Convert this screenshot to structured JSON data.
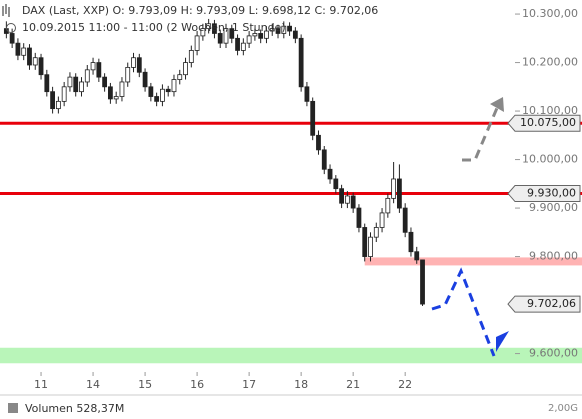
{
  "chart_data": {
    "type": "candlestick",
    "title": "DAX (Last, XXP)  O: 9.793,09  H: 9.793,09  L: 9.698,12  C: 9.702,06",
    "subtitle": "10.09.2015 11:00 - 11:00 (2 Wochen, 1 Stunde)",
    "volume_label": "Volumen  528,37M",
    "volume_tick": "2,00G",
    "ylim": [
      9562,
      10329
    ],
    "yticks": [
      {
        "value": 10300,
        "label": "10.300,00"
      },
      {
        "value": 10200,
        "label": "10.200,00"
      },
      {
        "value": 10100,
        "label": "10.100,00"
      },
      {
        "value": 10000,
        "label": "10.000,00"
      },
      {
        "value": 9900,
        "label": "9.900,00"
      },
      {
        "value": 9800,
        "label": "9.800,00"
      },
      {
        "value": 9600,
        "label": "9.600,00"
      }
    ],
    "xlim": [
      -1.1,
      88
    ],
    "xticks": [
      {
        "value": 6,
        "label": "11"
      },
      {
        "value": 15,
        "label": "14"
      },
      {
        "value": 24,
        "label": "15"
      },
      {
        "value": 33,
        "label": "16"
      },
      {
        "value": 42,
        "label": "17"
      },
      {
        "value": 51,
        "label": "18"
      },
      {
        "value": 60,
        "label": "21"
      },
      {
        "value": 69,
        "label": "22"
      }
    ],
    "levels": [
      {
        "value": 10075,
        "label": "10.075,00",
        "color": "#e8000b"
      },
      {
        "value": 9930,
        "label": "9.930,00",
        "color": "#e8000b"
      }
    ],
    "last_price": {
      "value": 9702.06,
      "label": "9.702,06"
    },
    "resistance_zone": {
      "value": 9790,
      "start": 62,
      "color": "#ffb3b3"
    },
    "support_zone": {
      "from": 9580,
      "to": 9612,
      "color": "#b9f5b9"
    },
    "candles": [
      [
        10270,
        10285,
        10250,
        10260
      ],
      [
        10260,
        10270,
        10230,
        10240
      ],
      [
        10240,
        10250,
        10205,
        10215
      ],
      [
        10215,
        10240,
        10205,
        10230
      ],
      [
        10230,
        10238,
        10185,
        10195
      ],
      [
        10195,
        10220,
        10185,
        10210
      ],
      [
        10210,
        10218,
        10165,
        10175
      ],
      [
        10175,
        10185,
        10130,
        10140
      ],
      [
        10140,
        10150,
        10095,
        10105
      ],
      [
        10105,
        10130,
        10095,
        10120
      ],
      [
        10120,
        10160,
        10110,
        10150
      ],
      [
        10150,
        10180,
        10140,
        10170
      ],
      [
        10170,
        10178,
        10130,
        10140
      ],
      [
        10140,
        10170,
        10130,
        10160
      ],
      [
        10160,
        10195,
        10150,
        10185
      ],
      [
        10185,
        10210,
        10175,
        10200
      ],
      [
        10200,
        10208,
        10160,
        10170
      ],
      [
        10170,
        10178,
        10140,
        10150
      ],
      [
        10150,
        10158,
        10115,
        10125
      ],
      [
        10125,
        10140,
        10115,
        10130
      ],
      [
        10130,
        10170,
        10120,
        10160
      ],
      [
        10160,
        10200,
        10150,
        10190
      ],
      [
        10190,
        10220,
        10180,
        10210
      ],
      [
        10210,
        10218,
        10170,
        10180
      ],
      [
        10180,
        10188,
        10140,
        10150
      ],
      [
        10150,
        10158,
        10120,
        10130
      ],
      [
        10130,
        10138,
        10110,
        10120
      ],
      [
        10120,
        10155,
        10110,
        10145
      ],
      [
        10145,
        10152,
        10130,
        10140
      ],
      [
        10140,
        10175,
        10130,
        10165
      ],
      [
        10165,
        10185,
        10155,
        10175
      ],
      [
        10175,
        10210,
        10165,
        10200
      ],
      [
        10200,
        10235,
        10190,
        10225
      ],
      [
        10225,
        10265,
        10215,
        10255
      ],
      [
        10255,
        10280,
        10245,
        10270
      ],
      [
        10270,
        10290,
        10260,
        10280
      ],
      [
        10280,
        10288,
        10250,
        10260
      ],
      [
        10260,
        10268,
        10230,
        10240
      ],
      [
        10240,
        10280,
        10230,
        10270
      ],
      [
        10270,
        10278,
        10240,
        10250
      ],
      [
        10250,
        10258,
        10215,
        10225
      ],
      [
        10225,
        10250,
        10215,
        10240
      ],
      [
        10240,
        10265,
        10230,
        10255
      ],
      [
        10255,
        10270,
        10245,
        10260
      ],
      [
        10260,
        10268,
        10240,
        10250
      ],
      [
        10250,
        10275,
        10240,
        10265
      ],
      [
        10265,
        10280,
        10255,
        10270
      ],
      [
        10270,
        10278,
        10250,
        10260
      ],
      [
        10260,
        10285,
        10250,
        10275
      ],
      [
        10275,
        10283,
        10255,
        10265
      ],
      [
        10265,
        10273,
        10240,
        10250
      ],
      [
        10250,
        10258,
        10140,
        10150
      ],
      [
        10150,
        10160,
        10110,
        10120
      ],
      [
        10120,
        10128,
        10040,
        10050
      ],
      [
        10050,
        10060,
        10010,
        10020
      ],
      [
        10020,
        10028,
        9970,
        9980
      ],
      [
        9980,
        9990,
        9950,
        9960
      ],
      [
        9960,
        9968,
        9930,
        9940
      ],
      [
        9940,
        9948,
        9900,
        9910
      ],
      [
        9910,
        9935,
        9900,
        9925
      ],
      [
        9925,
        9932,
        9890,
        9900
      ],
      [
        9900,
        9908,
        9850,
        9860
      ],
      [
        9860,
        9868,
        9790,
        9800
      ],
      [
        9800,
        9850,
        9790,
        9840
      ],
      [
        9840,
        9870,
        9830,
        9860
      ],
      [
        9860,
        9900,
        9850,
        9890
      ],
      [
        9890,
        9930,
        9880,
        9920
      ],
      [
        9920,
        9995,
        9910,
        9960
      ],
      [
        9960,
        9990,
        9890,
        9900
      ],
      [
        9900,
        9910,
        9840,
        9850
      ],
      [
        9850,
        9860,
        9800,
        9810
      ],
      [
        9810,
        9820,
        9785,
        9793.09
      ],
      [
        9793.09,
        9793.09,
        9698.12,
        9702.06
      ]
    ]
  }
}
